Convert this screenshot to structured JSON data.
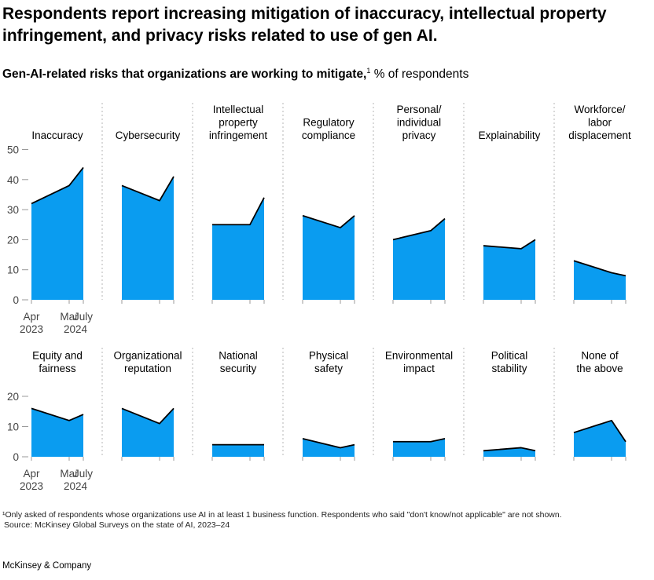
{
  "header": {
    "title": "Respondents report increasing mitigation of inaccuracy, intellectual property infringement, and privacy risks related to use of gen AI.",
    "subtitle_bold": "Gen-AI-related risks that organizations are working to mitigate,",
    "subtitle_footnote_mark": "1",
    "subtitle_rest": " % of respondents"
  },
  "footer": {
    "footnote": "¹Only asked of respondents whose organizations use AI in at least 1 business function. Respondents who said \"don't know/not applicable\" are not shown.",
    "source": "Source: McKinsey Global Surveys on the state of AI, 2023–24",
    "brand": "McKinsey & Company"
  },
  "colors": {
    "area": "#0a9cf0",
    "line": "#000000",
    "axis": "#9a9a9a",
    "divider": "#b4b4b4"
  },
  "chart_data": {
    "type": "area",
    "x_labels": [
      {
        "top": "Apr",
        "bottom": "2023"
      },
      {
        "top": "Mar",
        "bottom": "2024"
      },
      {
        "top": "July",
        "bottom": ""
      }
    ],
    "rows": [
      {
        "y_ticks": [
          0,
          10,
          20,
          30,
          40,
          50
        ],
        "ylim": [
          0,
          50
        ],
        "panels": [
          {
            "label": [
              "Inaccuracy"
            ],
            "values": [
              32,
              38,
              44
            ]
          },
          {
            "label": [
              "Cybersecurity"
            ],
            "values": [
              38,
              33,
              41
            ]
          },
          {
            "label": [
              "Intellectual",
              "property",
              "infringement"
            ],
            "values": [
              25,
              25,
              34
            ]
          },
          {
            "label": [
              "Regulatory",
              "compliance"
            ],
            "values": [
              28,
              24,
              28
            ]
          },
          {
            "label": [
              "Personal/",
              "individual",
              "privacy"
            ],
            "values": [
              20,
              23,
              27
            ]
          },
          {
            "label": [
              "Explainability"
            ],
            "values": [
              18,
              17,
              20
            ]
          },
          {
            "label": [
              "Workforce/",
              "labor",
              "displacement"
            ],
            "values": [
              13,
              9,
              8
            ]
          }
        ]
      },
      {
        "y_ticks": [
          0,
          10,
          20
        ],
        "ylim": [
          0,
          20
        ],
        "panels": [
          {
            "label": [
              "Equity and",
              "fairness"
            ],
            "values": [
              16,
              12,
              14
            ]
          },
          {
            "label": [
              "Organizational",
              "reputation"
            ],
            "values": [
              16,
              11,
              16
            ]
          },
          {
            "label": [
              "National",
              "security"
            ],
            "values": [
              4,
              4,
              4
            ]
          },
          {
            "label": [
              "Physical",
              "safety"
            ],
            "values": [
              6,
              3,
              4
            ]
          },
          {
            "label": [
              "Environmental",
              "impact"
            ],
            "values": [
              5,
              5,
              6
            ]
          },
          {
            "label": [
              "Political",
              "stability"
            ],
            "values": [
              2,
              3,
              2
            ]
          },
          {
            "label": [
              "None of",
              "the above"
            ],
            "values": [
              8,
              12,
              5
            ]
          }
        ]
      }
    ]
  }
}
